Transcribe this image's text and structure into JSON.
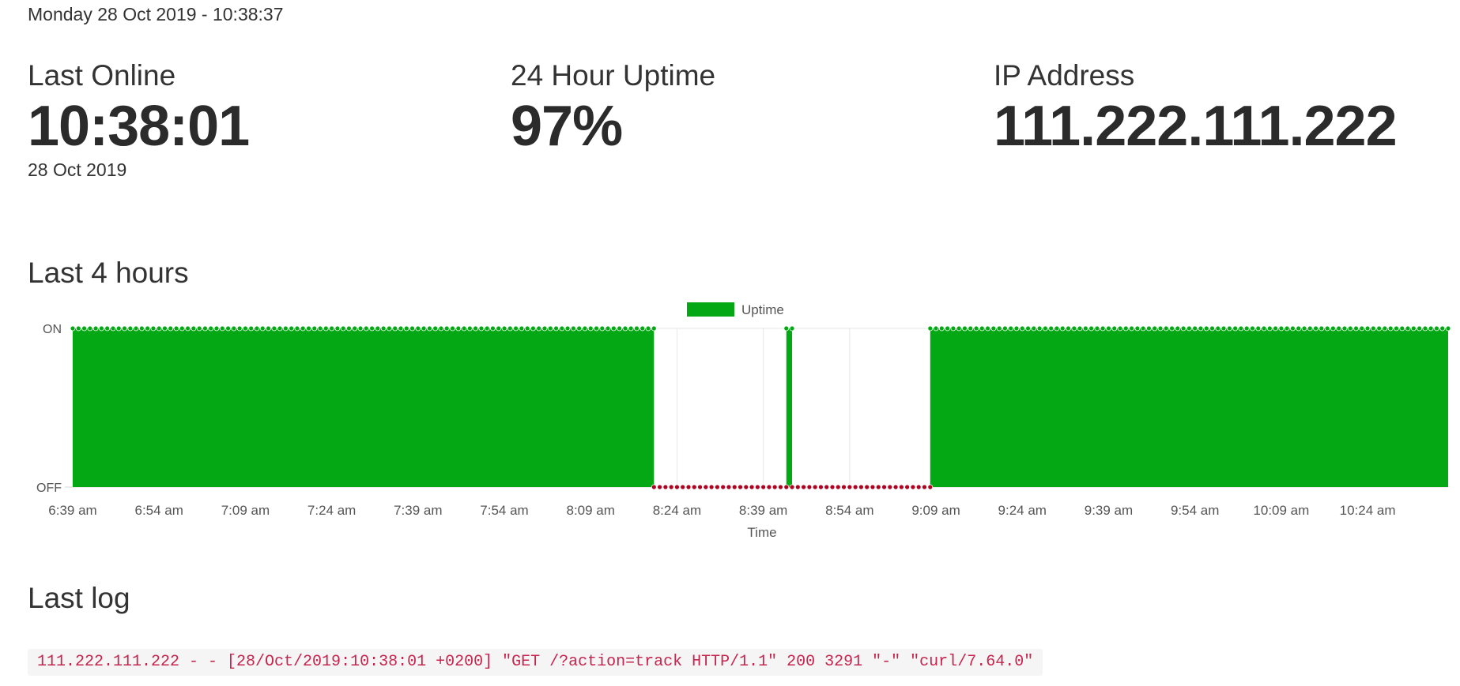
{
  "header": {
    "datetime": "Monday 28 Oct 2019 - 10:38:37"
  },
  "stats": {
    "last_online": {
      "label": "Last Online",
      "value": "10:38:01",
      "date": "28 Oct 2019"
    },
    "uptime": {
      "label": "24 Hour Uptime",
      "value": "97%"
    },
    "ip": {
      "label": "IP Address",
      "value": "111.222.111.222"
    }
  },
  "sections": {
    "chart_title": "Last 4 hours",
    "log_title": "Last log"
  },
  "log": {
    "line": "111.222.111.222 - - [28/Oct/2019:10:38:01 +0200] \"GET /?action=track HTTP/1.1\" 200 3291 \"-\" \"curl/7.64.0\""
  },
  "colors": {
    "on": "#04a814",
    "off": "#b00020",
    "grid": "#e6e6e6",
    "log_text": "#c7254e",
    "log_bg": "#f5f5f5"
  },
  "chart_data": {
    "type": "area",
    "title": "",
    "xlabel": "Time",
    "ylabel": "",
    "legend": {
      "position": "top-center",
      "entries": [
        "Uptime"
      ]
    },
    "y_ticks": [
      "OFF",
      "ON"
    ],
    "ylim": [
      0,
      1
    ],
    "x_tick_labels": [
      "6:39 am",
      "6:54 am",
      "7:09 am",
      "7:24 am",
      "7:39 am",
      "7:54 am",
      "8:09 am",
      "8:24 am",
      "8:39 am",
      "8:54 am",
      "9:09 am",
      "9:24 am",
      "9:39 am",
      "9:54 am",
      "10:09 am",
      "10:24 am"
    ],
    "x_range": [
      "6:39 am",
      "10:38 am"
    ],
    "series": [
      {
        "name": "Uptime",
        "interval_minutes": 1,
        "segments": [
          {
            "from": "6:39 am",
            "to": "8:20 am",
            "state": "ON"
          },
          {
            "from": "8:20 am",
            "to": "8:43 am",
            "state": "OFF"
          },
          {
            "from": "8:43 am",
            "to": "8:44 am",
            "state": "ON"
          },
          {
            "from": "8:44 am",
            "to": "9:08 am",
            "state": "OFF"
          },
          {
            "from": "9:08 am",
            "to": "10:38 am",
            "state": "ON"
          }
        ]
      }
    ],
    "grid": true
  }
}
